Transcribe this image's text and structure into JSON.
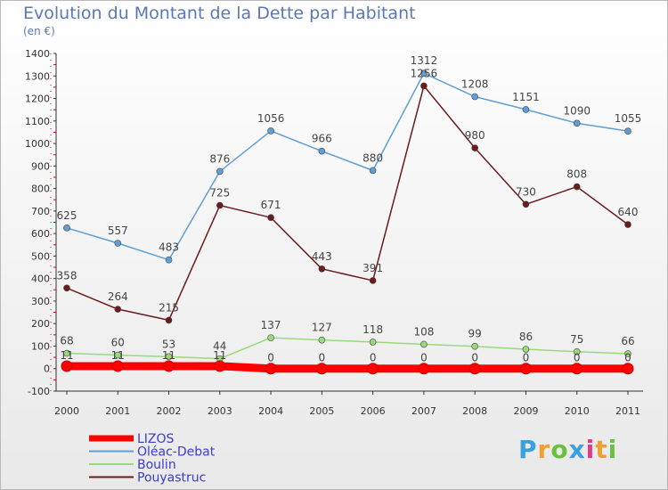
{
  "title": "Evolution du Montant de la Dette par Habitant",
  "unit": "(en €)",
  "logo": {
    "text": "Proxiti"
  },
  "colors": {
    "axis": "#333333",
    "grid_tick": "#cc0000",
    "label": "#444444",
    "legend_text": "#3b3bcf"
  },
  "chart_data": {
    "type": "line",
    "title": "Evolution du Montant de la Dette par Habitant",
    "ylabel": "(en €)",
    "ylim": [
      -100,
      1400
    ],
    "yticks": [
      -100,
      0,
      100,
      200,
      300,
      400,
      500,
      600,
      700,
      800,
      900,
      1000,
      1100,
      1200,
      1300,
      1400
    ],
    "categories": [
      "2000",
      "2001",
      "2002",
      "2003",
      "2004",
      "2005",
      "2006",
      "2007",
      "2008",
      "2009",
      "2010",
      "2011"
    ],
    "legend_position": "bottom-left",
    "series": [
      {
        "name": "LIZOS",
        "color": "#ff0000",
        "values": [
          11,
          11,
          11,
          11,
          0,
          0,
          0,
          0,
          0,
          0,
          0,
          0
        ],
        "labels": [
          "11",
          "11",
          "11",
          "11",
          "0",
          "0",
          "0",
          "0",
          "0",
          "0",
          "0",
          "0"
        ]
      },
      {
        "name": "Oléac-Debat",
        "color": "#5f9fd6",
        "values": [
          625,
          557,
          483,
          876,
          1056,
          966,
          880,
          1312,
          1208,
          1151,
          1090,
          1055
        ],
        "labels": [
          "625",
          "557",
          "483",
          "876",
          "1056",
          "966",
          "880",
          "1312",
          "1208",
          "1151",
          "1090",
          "1055"
        ]
      },
      {
        "name": "Boulin",
        "color": "#99d97a",
        "values": [
          68,
          60,
          53,
          44,
          137,
          127,
          118,
          108,
          99,
          86,
          75,
          66
        ],
        "labels": [
          "68",
          "60",
          "53",
          "44",
          "137",
          "127",
          "118",
          "108",
          "99",
          "86",
          "75",
          "66"
        ]
      },
      {
        "name": "Pouyastruc",
        "color": "#6b1b1b",
        "values": [
          358,
          264,
          215,
          725,
          671,
          443,
          391,
          1256,
          980,
          730,
          808,
          640
        ],
        "labels": [
          "358",
          "264",
          "215",
          "725",
          "671",
          "443",
          "391",
          "1256",
          "980",
          "730",
          "808",
          "640"
        ]
      }
    ]
  }
}
